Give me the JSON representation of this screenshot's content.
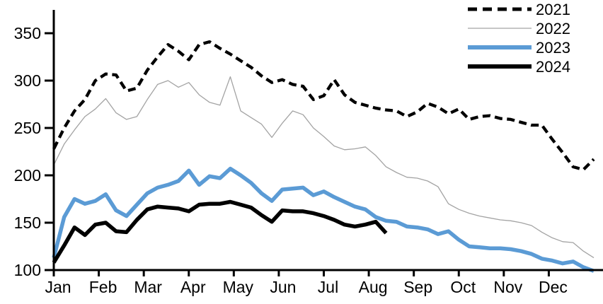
{
  "chart_data": {
    "type": "line",
    "title": "",
    "xlabel": "",
    "ylabel": "",
    "x_axis": {
      "months": [
        "Jan",
        "Feb",
        "Mar",
        "Apr",
        "May",
        "Jun",
        "Jul",
        "Aug",
        "Sep",
        "Oct",
        "Nov",
        "Dec"
      ]
    },
    "y_axis": {
      "ticks": [
        100,
        150,
        200,
        250,
        300,
        350
      ],
      "min": 100,
      "max": 350
    },
    "grid": false,
    "legend_position": "top-right",
    "colors": {
      "series_2021": "#000000",
      "series_2022": "#a3a3a3",
      "series_2023": "#5b9bd5",
      "series_2024": "#000000"
    },
    "series": [
      {
        "name": "2021",
        "style": "dashed",
        "color": "#000000",
        "values": [
          228,
          250,
          268,
          280,
          300,
          307,
          306,
          289,
          292,
          311,
          325,
          338,
          331,
          322,
          338,
          341,
          334,
          328,
          321,
          314,
          305,
          298,
          301,
          296,
          294,
          280,
          284,
          301,
          285,
          277,
          274,
          271,
          269,
          268,
          262,
          267,
          276,
          272,
          265,
          270,
          259,
          262,
          263,
          260,
          259,
          256,
          253,
          253,
          238,
          224,
          209,
          206,
          217
        ]
      },
      {
        "name": "2022",
        "style": "thin-solid",
        "color": "#a3a3a3",
        "values": [
          211,
          233,
          248,
          262,
          270,
          281,
          266,
          259,
          262,
          280,
          296,
          300,
          293,
          298,
          285,
          277,
          274,
          304,
          268,
          261,
          254,
          240,
          255,
          268,
          264,
          250,
          241,
          231,
          227,
          228,
          230,
          221,
          209,
          203,
          198,
          197,
          194,
          188,
          170,
          164,
          160,
          157,
          155,
          153,
          152,
          150,
          147,
          140,
          134,
          130,
          129,
          120,
          113
        ]
      },
      {
        "name": "2023",
        "style": "thick-solid",
        "color": "#5b9bd5",
        "values": [
          113,
          156,
          175,
          170,
          173,
          180,
          163,
          157,
          169,
          181,
          187,
          190,
          194,
          205,
          190,
          199,
          197,
          207,
          200,
          192,
          181,
          173,
          185,
          186,
          187,
          179,
          183,
          177,
          172,
          167,
          164,
          156,
          152,
          151,
          146,
          145,
          143,
          138,
          141,
          132,
          125,
          124,
          123,
          123,
          122,
          120,
          117,
          112,
          110,
          107,
          109,
          103,
          99
        ]
      },
      {
        "name": "2024",
        "style": "thick-solid",
        "color": "#000000",
        "values": [
          108,
          126,
          145,
          137,
          148,
          150,
          141,
          140,
          153,
          164,
          167,
          166,
          165,
          162,
          169,
          170,
          170,
          172,
          169,
          166,
          158,
          151,
          163,
          162,
          162,
          160,
          157,
          153,
          148,
          146,
          148,
          151,
          139
        ]
      }
    ],
    "legend": [
      {
        "label": "2021"
      },
      {
        "label": "2022"
      },
      {
        "label": "2023"
      },
      {
        "label": "2024"
      }
    ]
  }
}
